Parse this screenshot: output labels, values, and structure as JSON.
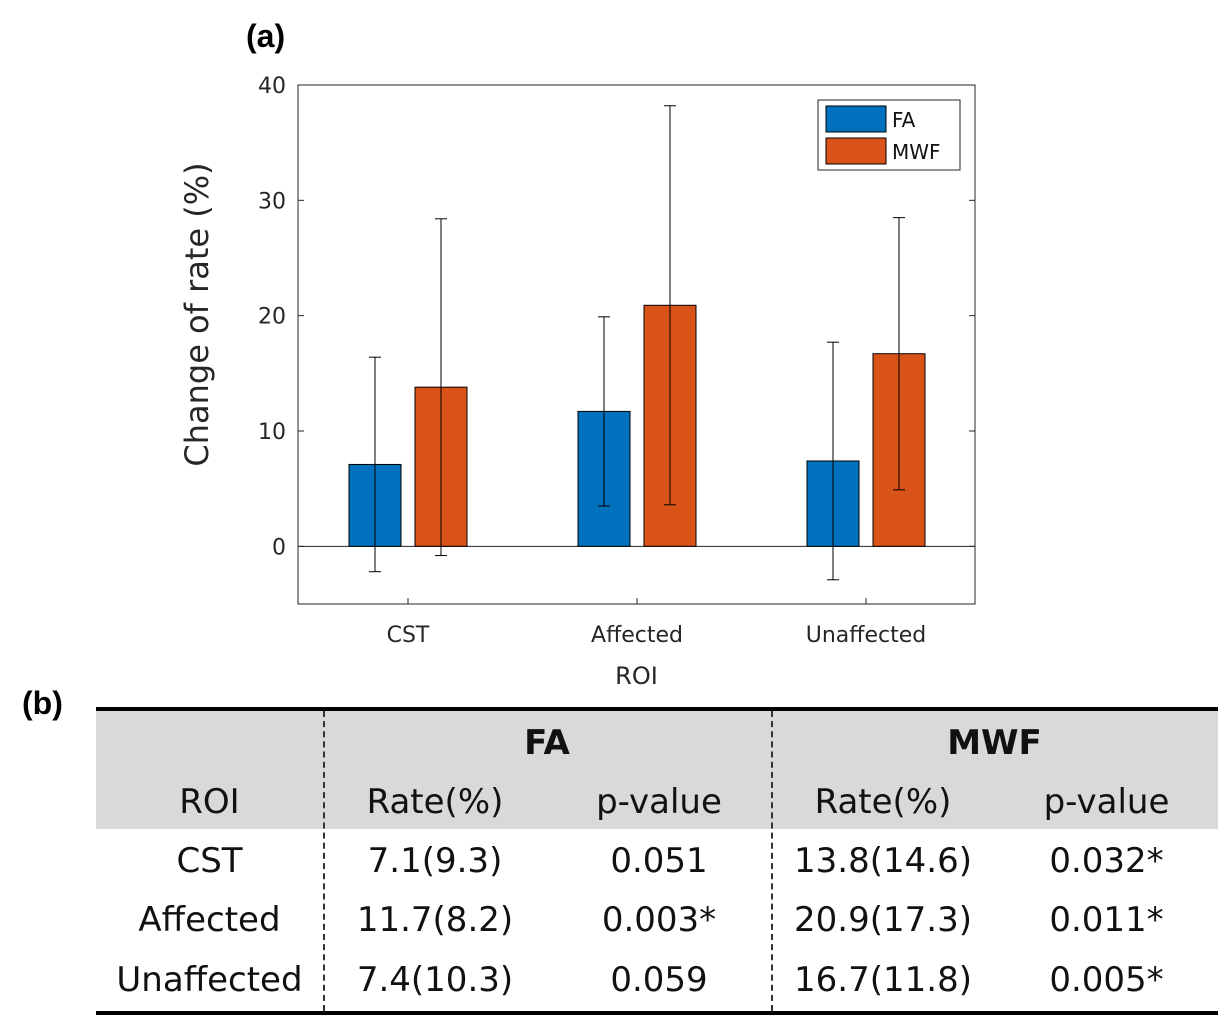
{
  "panel_a_label": "(a)",
  "panel_b_label": "(b)",
  "chart_data": {
    "type": "bar",
    "categories": [
      "CST",
      "Affected",
      "Unaffected"
    ],
    "series": [
      {
        "name": "FA",
        "values": [
          7.1,
          11.7,
          7.4
        ],
        "error": [
          9.3,
          8.2,
          10.3
        ],
        "color": "#0072BD"
      },
      {
        "name": "MWF",
        "values": [
          13.8,
          20.9,
          16.7
        ],
        "error": [
          14.6,
          17.3,
          11.8
        ],
        "color": "#D95319"
      }
    ],
    "xlabel": "ROI",
    "ylabel": "Change of rate (%)",
    "ylim": [
      -5,
      40
    ],
    "yticks": [
      0,
      10,
      20,
      30,
      40
    ],
    "legend_placement": "top-right",
    "grid": false
  },
  "table": {
    "group_headers": [
      "FA",
      "MWF"
    ],
    "columns": [
      "ROI",
      "Rate(%)",
      "p-value",
      "Rate(%)",
      "p-value"
    ],
    "rows": [
      [
        "CST",
        "7.1(9.3)",
        "0.051",
        "13.8(14.6)",
        "0.032*"
      ],
      [
        "Affected",
        "11.7(8.2)",
        "0.003*",
        "20.9(17.3)",
        "0.011*"
      ],
      [
        "Unaffected",
        "7.4(10.3)",
        "0.059",
        "16.7(11.8)",
        "0.005*"
      ]
    ]
  }
}
